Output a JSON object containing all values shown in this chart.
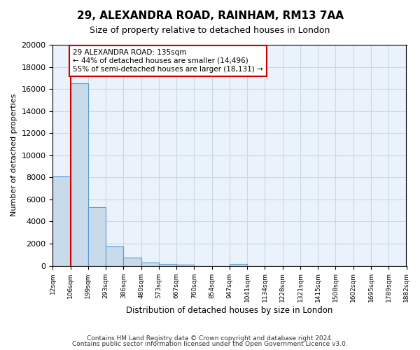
{
  "title": "29, ALEXANDRA ROAD, RAINHAM, RM13 7AA",
  "subtitle": "Size of property relative to detached houses in London",
  "xlabel": "Distribution of detached houses by size in London",
  "ylabel": "Number of detached properties",
  "bin_labels": [
    "12sqm",
    "106sqm",
    "199sqm",
    "293sqm",
    "386sqm",
    "480sqm",
    "573sqm",
    "667sqm",
    "760sqm",
    "854sqm",
    "947sqm",
    "1041sqm",
    "1134sqm",
    "1228sqm",
    "1321sqm",
    "1415sqm",
    "1508sqm",
    "1602sqm",
    "1695sqm",
    "1789sqm",
    "1882sqm"
  ],
  "bin_values": [
    8100,
    16500,
    5300,
    1750,
    750,
    300,
    150,
    100,
    0,
    0,
    150,
    0,
    0,
    0,
    0,
    0,
    0,
    0,
    0,
    0
  ],
  "bar_color": "#c9daea",
  "bar_edge_color": "#5b9bd5",
  "property_line_x": 1,
  "property_line_color": "#cc0000",
  "annotation_line1": "29 ALEXANDRA ROAD: 135sqm",
  "annotation_line2": "← 44% of detached houses are smaller (14,496)",
  "annotation_line3": "55% of semi-detached houses are larger (18,131) →",
  "annotation_box_color": "#ffffff",
  "annotation_box_edge_color": "#cc0000",
  "ylim": [
    0,
    20000
  ],
  "yticks": [
    0,
    2000,
    4000,
    6000,
    8000,
    10000,
    12000,
    14000,
    16000,
    18000,
    20000
  ],
  "footer_line1": "Contains HM Land Registry data © Crown copyright and database right 2024.",
  "footer_line2": "Contains public sector information licensed under the Open Government Licence v3.0.",
  "grid_color": "#c8d8e8",
  "bg_color": "#eaf2fb"
}
